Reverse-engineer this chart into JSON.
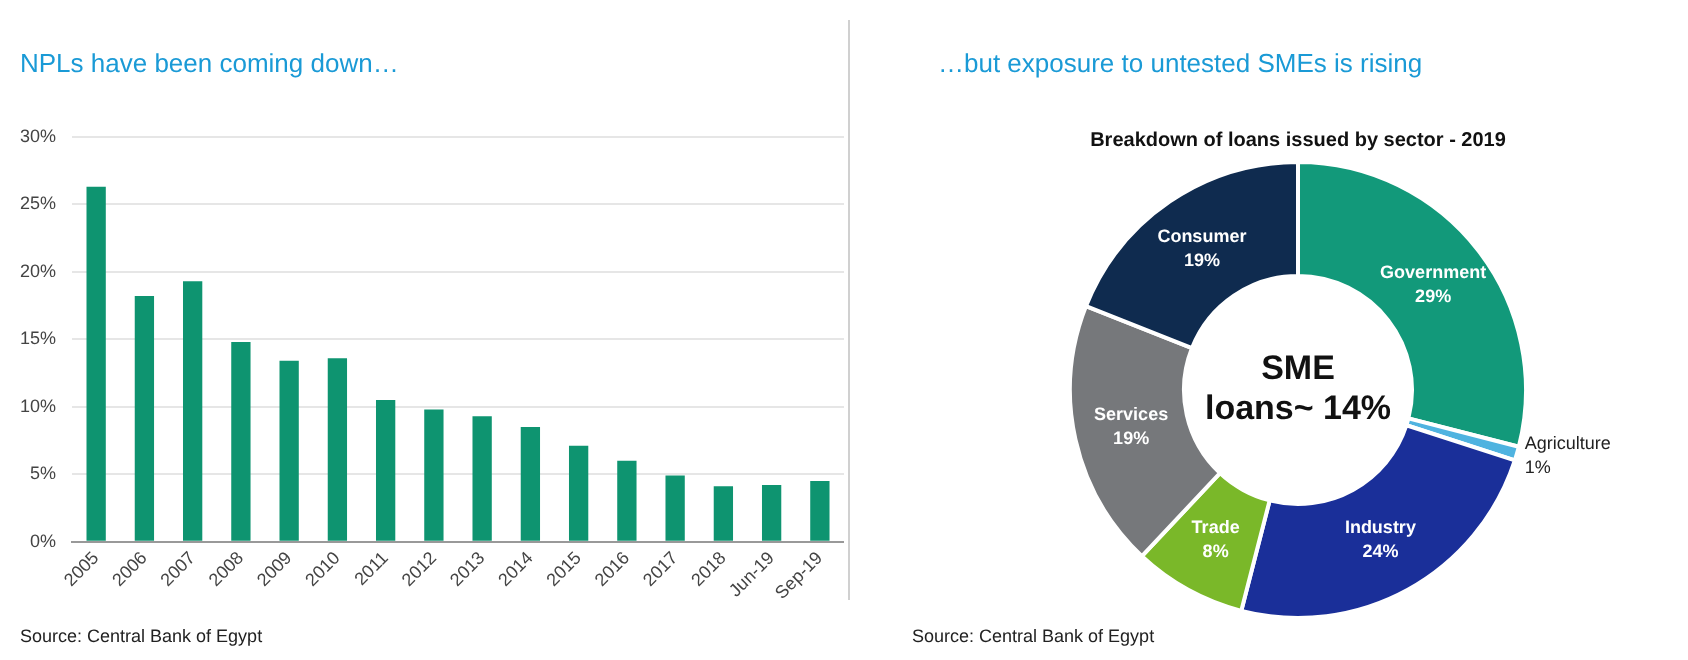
{
  "chart_data": [
    {
      "type": "bar",
      "title": "NPLs have been coming down…",
      "categories": [
        "2005",
        "2006",
        "2007",
        "2008",
        "2009",
        "2010",
        "2011",
        "2012",
        "2013",
        "2014",
        "2015",
        "2016",
        "2017",
        "2018",
        "Jun-19",
        "Sep-19"
      ],
      "values": [
        26.3,
        18.2,
        19.3,
        14.8,
        13.4,
        13.6,
        10.5,
        9.8,
        9.3,
        8.5,
        7.1,
        6.0,
        4.9,
        4.1,
        4.2,
        4.5
      ],
      "color": "#0e9470",
      "ylim": [
        0,
        30
      ],
      "yticks": [
        {
          "value": 0,
          "label": "0%"
        },
        {
          "value": 5,
          "label": "5%"
        },
        {
          "value": 10,
          "label": "10%"
        },
        {
          "value": 15,
          "label": "15%"
        },
        {
          "value": 20,
          "label": "20%"
        },
        {
          "value": 25,
          "label": "25%"
        },
        {
          "value": 30,
          "label": "30%"
        }
      ],
      "grid": "y",
      "annotations": [
        "Source: Central Bank of Egypt"
      ]
    },
    {
      "type": "donut",
      "title": "…but exposure to untested SMEs is rising",
      "subtitle": "Breakdown of loans issued by sector - 2019",
      "categories": [
        "Government",
        "Agriculture",
        "Industry",
        "Trade",
        "Services",
        "Consumer"
      ],
      "values": [
        29,
        1,
        24,
        8,
        19,
        19
      ],
      "colors": [
        "#12997a",
        "#4fb3e0",
        "#1a2f99",
        "#7ab829",
        "#76787b",
        "#0f2b4f"
      ],
      "value_labels": [
        "29%",
        "1%",
        "24%",
        "8%",
        "19%",
        "19%"
      ],
      "annotations": [
        "SME loans~ 14%",
        "Source: Central Bank of Egypt"
      ]
    }
  ]
}
